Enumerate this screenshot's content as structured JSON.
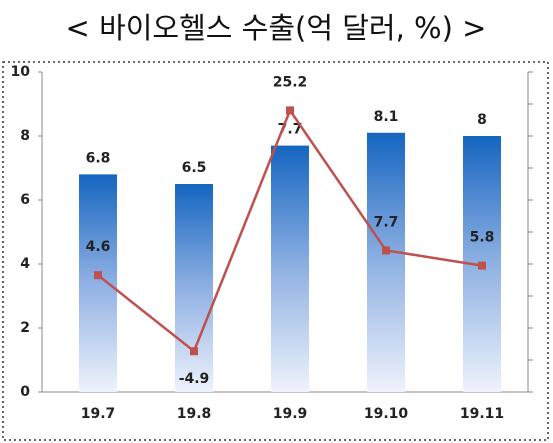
{
  "chart_data": {
    "type": "bar-line",
    "title": "< 바이오헬스 수출(억 달러, %) >",
    "categories": [
      "19.7",
      "19.8",
      "19.9",
      "19.10",
      "19.11"
    ],
    "series": [
      {
        "type": "bar",
        "color": "#1565c0",
        "values": [
          6.8,
          6.5,
          7.7,
          8.1,
          8.0
        ]
      },
      {
        "type": "line",
        "axis": "y2",
        "color": "#c0504d",
        "values": [
          4.6,
          -4.9,
          25.2,
          7.7,
          5.8
        ]
      }
    ],
    "ylim": [
      0,
      10
    ],
    "yticks": [
      0,
      2,
      4,
      6,
      8,
      10
    ],
    "y2lim": [
      -10,
      30
    ],
    "y2ticks": [
      -10,
      -6,
      -2,
      2,
      6,
      10,
      14,
      18,
      22,
      26,
      30
    ]
  }
}
